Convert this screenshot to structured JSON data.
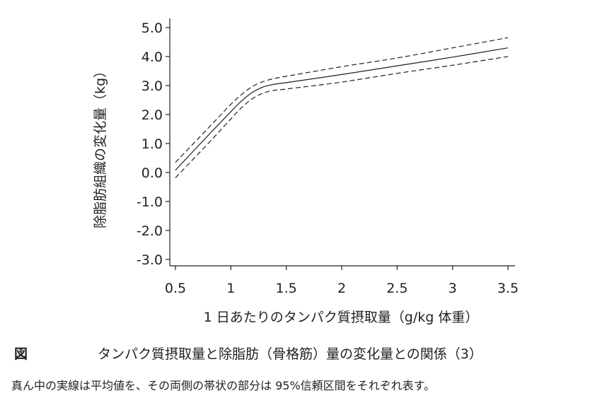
{
  "chart_data": {
    "type": "line",
    "xlabel": "1 日あたりのタンパク質摂取量（g/kg 体重）",
    "ylabel": "除脂肪組織の変化量（kg）",
    "xlim": [
      0.45,
      3.55
    ],
    "ylim": [
      -3.25,
      5.25
    ],
    "x_ticks": [
      "0.5",
      "1",
      "1.5",
      "2",
      "2.5",
      "3",
      "3.5"
    ],
    "y_ticks": [
      "5.0",
      "4.0",
      "3.0",
      "2.0",
      "1.0",
      "0.0",
      "-1.0",
      "-2.0",
      "-3.0"
    ],
    "grid": false,
    "series": [
      {
        "role": "upper",
        "style": "dashed",
        "x": [
          0.5,
          0.8,
          1.0,
          1.1,
          1.2,
          1.3,
          1.4,
          1.5,
          2.0,
          2.5,
          3.0,
          3.5
        ],
        "y": [
          0.35,
          1.55,
          2.35,
          2.7,
          2.98,
          3.15,
          3.25,
          3.32,
          3.65,
          3.95,
          4.3,
          4.65
        ]
      },
      {
        "role": "mean",
        "style": "solid",
        "x": [
          0.5,
          0.8,
          1.0,
          1.1,
          1.2,
          1.3,
          1.4,
          1.5,
          2.0,
          2.5,
          3.0,
          3.5
        ],
        "y": [
          0.08,
          1.3,
          2.1,
          2.48,
          2.78,
          2.96,
          3.05,
          3.1,
          3.38,
          3.68,
          3.98,
          4.3
        ]
      },
      {
        "role": "lower",
        "style": "dashed",
        "x": [
          0.5,
          0.8,
          1.0,
          1.1,
          1.2,
          1.3,
          1.4,
          1.5,
          2.0,
          2.5,
          3.0,
          3.5
        ],
        "y": [
          -0.18,
          1.02,
          1.85,
          2.25,
          2.56,
          2.75,
          2.84,
          2.88,
          3.12,
          3.42,
          3.7,
          4.0
        ]
      }
    ]
  },
  "caption": {
    "label": "図",
    "title": "タンパク質摂取量と除脂肪（骨格筋）量の変化量との関係（3）"
  },
  "note": "真ん中の実線は平均値を、その両側の帯状の部分は 95%信頼区間をそれぞれ表す。"
}
